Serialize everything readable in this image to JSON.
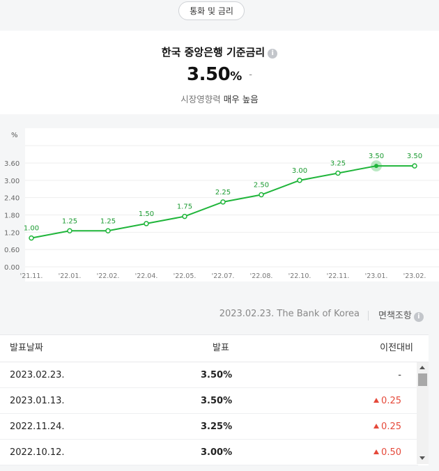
{
  "category_pill": "통화 및 금리",
  "header": {
    "title": "한국 중앙은행 기준금리",
    "info_icon": "info-icon",
    "rate_value": "3.50",
    "rate_unit": "%",
    "rate_change": "-",
    "impact_prefix": "시장영향력",
    "impact_level": "매우 높음"
  },
  "chart_data": {
    "type": "line",
    "ylabel": "%",
    "ylim": [
      0,
      3.6
    ],
    "yticks": [
      "0.00",
      "0.60",
      "1.20",
      "1.80",
      "2.40",
      "3.00",
      "3.60"
    ],
    "categories": [
      "'21.11.",
      "'22.01.",
      "'22.02.",
      "'22.04.",
      "'22.05.",
      "'22.07.",
      "'22.08.",
      "'22.10.",
      "'22.11.",
      "'23.01.",
      "'23.02."
    ],
    "tick_labels": [
      "'21.11.",
      "'22.01.",
      "'22.02.",
      "'22.04.",
      "'22.05.",
      "'22.07.",
      "'22.08.",
      "'22.10.",
      "'22.11.",
      "'23.01.",
      "'23.02."
    ],
    "values": [
      1.0,
      1.25,
      1.25,
      1.5,
      1.75,
      2.25,
      2.5,
      3.0,
      3.25,
      3.5,
      3.5
    ],
    "data_labels": [
      "1.00",
      "1.25",
      "1.25",
      "1.50",
      "1.75",
      "2.25",
      "2.50",
      "3.00",
      "3.25",
      "3.50",
      "3.50"
    ],
    "highlight_index": 9,
    "line_color": "#1fb53a",
    "grid": true
  },
  "source": {
    "text": "2023.02.23. The Bank of Korea",
    "disclaimer_label": "면책조항"
  },
  "table": {
    "headers": {
      "date": "발표날짜",
      "value": "발표",
      "change": "이전대비"
    },
    "rows": [
      {
        "date": "2023.02.23.",
        "value": "3.50%",
        "change": "-",
        "direction": "none"
      },
      {
        "date": "2023.01.13.",
        "value": "3.50%",
        "change": "0.25",
        "direction": "up"
      },
      {
        "date": "2022.11.24.",
        "value": "3.25%",
        "change": "0.25",
        "direction": "up"
      },
      {
        "date": "2022.10.12.",
        "value": "3.00%",
        "change": "0.50",
        "direction": "up"
      }
    ]
  },
  "colors": {
    "up": "#e5493a",
    "line": "#1fb53a"
  }
}
